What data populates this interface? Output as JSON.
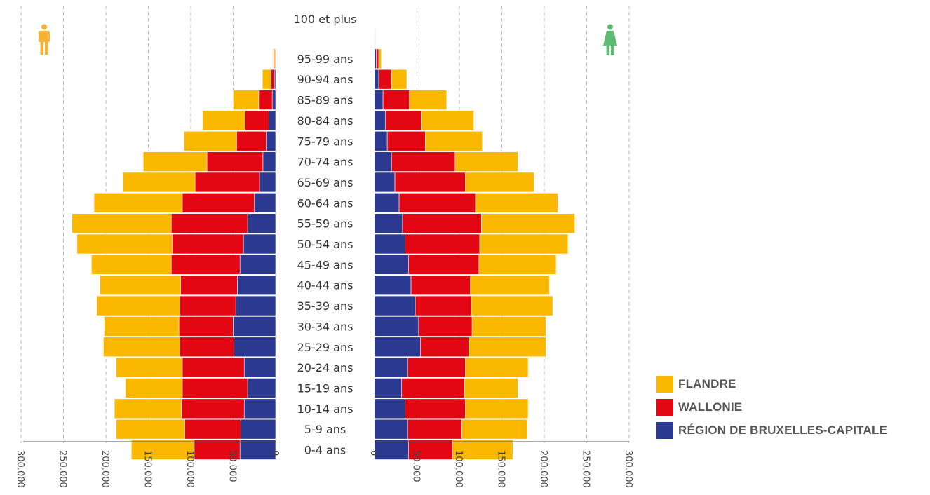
{
  "chart_data": {
    "type": "bar",
    "orientation": "horizontal-stacked-population-pyramid",
    "categories": [
      "100 et plus",
      "95-99 ans",
      "90-94 ans",
      "85-89 ans",
      "80-84 ans",
      "75-79 ans",
      "70-74 ans",
      "65-69 ans",
      "60-64 ans",
      "55-59 ans",
      "50-54 ans",
      "45-49 ans",
      "40-44 ans",
      "35-39 ans",
      "30-34 ans",
      "25-29 ans",
      "20-24 ans",
      "15-19 ans",
      "10-14 ans",
      "5-9 ans",
      "0-4 ans"
    ],
    "xlim": [
      0,
      300000
    ],
    "grid": true,
    "legend_position": "bottom-right",
    "men": {
      "icon": "man-icon",
      "series": [
        {
          "name": "RÉGION DE BRUXELLES-CAPITALE",
          "values": [
            100,
            400,
            1500,
            4000,
            8000,
            11000,
            15000,
            19000,
            25000,
            33000,
            38000,
            42000,
            45000,
            47000,
            50000,
            49000,
            37000,
            33000,
            37000,
            41000,
            42000
          ]
        },
        {
          "name": "WALLONIE",
          "values": [
            100,
            1000,
            4000,
            16000,
            28000,
            35000,
            66000,
            76000,
            85000,
            90000,
            84000,
            81000,
            67000,
            66000,
            64000,
            64000,
            73000,
            77000,
            74000,
            66000,
            54000
          ]
        },
        {
          "name": "FLANDRE",
          "values": [
            500,
            1500,
            10000,
            30000,
            50000,
            62000,
            75000,
            85000,
            104000,
            117000,
            112000,
            94000,
            95000,
            98000,
            88000,
            90000,
            78000,
            67000,
            79000,
            81000,
            74000
          ]
        }
      ]
    },
    "women": {
      "icon": "woman-icon",
      "series": [
        {
          "name": "RÉGION DE BRUXELLES-CAPITALE",
          "values": [
            300,
            2000,
            5000,
            10000,
            13000,
            15000,
            20000,
            24000,
            29000,
            33000,
            36000,
            40000,
            43000,
            48000,
            52000,
            54000,
            39000,
            32000,
            36000,
            39000,
            40000
          ]
        },
        {
          "name": "WALLONIE",
          "values": [
            500,
            3000,
            15000,
            31000,
            42000,
            45000,
            75000,
            83000,
            90000,
            93000,
            88000,
            83000,
            70000,
            66000,
            63000,
            57000,
            68000,
            74000,
            71000,
            64000,
            52000
          ]
        },
        {
          "name": "FLANDRE",
          "values": [
            500,
            3000,
            18000,
            44000,
            62000,
            67000,
            74000,
            81000,
            97000,
            110000,
            104000,
            91000,
            93000,
            96000,
            87000,
            91000,
            74000,
            63000,
            74000,
            77000,
            71000
          ]
        }
      ]
    },
    "ticks_left": [
      "300.000",
      "250.000",
      "200.000",
      "150.000",
      "100.000",
      "50.000",
      "0"
    ],
    "ticks_right": [
      "0",
      "50.000",
      "100.000",
      "150.000",
      "200.000",
      "250.000",
      "300.000"
    ]
  },
  "colors": {
    "flandre": "#FBB800",
    "wallonie": "#E30613",
    "bruxelles": "#2B3990",
    "man_icon": "#F5B335",
    "woman_icon": "#5DBB72",
    "grid": "#BBBBBB",
    "axis": "#555555"
  },
  "legend": {
    "items": [
      {
        "label": "FLANDRE",
        "color": "#FBB800"
      },
      {
        "label": "WALLONIE",
        "color": "#E30613"
      },
      {
        "label": "RÉGION DE BRUXELLES-CAPITALE",
        "color": "#2B3990"
      }
    ]
  }
}
